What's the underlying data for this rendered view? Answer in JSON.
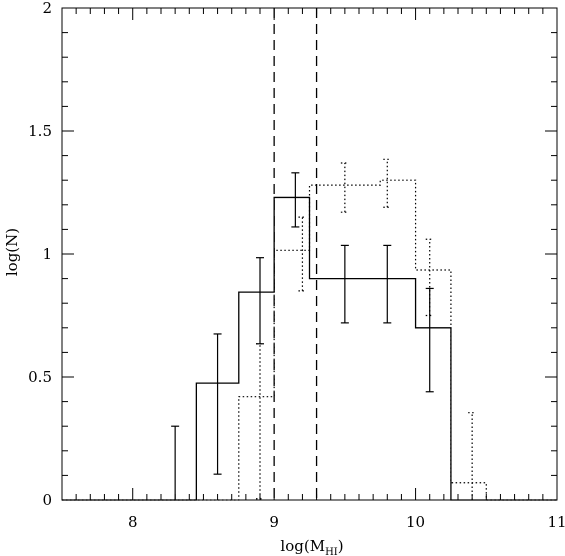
{
  "chart_data": {
    "type": "histogram",
    "xlabel": "log(M",
    "xlabel_sub": "HI",
    "xlabel_close": ")",
    "ylabel": "log(N)",
    "xlim": [
      7.5,
      11
    ],
    "ylim": [
      0,
      2
    ],
    "x_ticks": [
      8,
      9,
      10,
      11
    ],
    "x_tick_labels": [
      "8",
      "9",
      "10",
      "11"
    ],
    "y_ticks": [
      0,
      0.5,
      1,
      1.5,
      2
    ],
    "y_tick_labels": [
      "0",
      "0.5",
      "1",
      "1.5",
      "2"
    ],
    "grid": false,
    "vertical_lines": [
      9.0,
      9.3
    ],
    "series": [
      {
        "style": "solid",
        "bin_edges": [
          7.5,
          7.7,
          7.95,
          8.15,
          8.45,
          8.75,
          9.0,
          9.25,
          9.5,
          9.75,
          10.0,
          10.25,
          10.5,
          10.75,
          11.0
        ],
        "values": [
          0,
          0,
          0,
          0,
          0.475,
          0.845,
          1.23,
          0.9,
          0.9,
          0.9,
          0.7,
          0,
          0,
          0
        ],
        "error_bars": [
          {
            "x": 8.3,
            "y": 0,
            "low": 0,
            "high": 0.3
          },
          {
            "x": 8.6,
            "y": 0.475,
            "low": 0.105,
            "high": 0.675
          },
          {
            "x": 8.9,
            "y": 0.845,
            "low": 0.635,
            "high": 0.985
          },
          {
            "x": 9.15,
            "y": 1.23,
            "low": 1.11,
            "high": 1.33
          },
          {
            "x": 9.5,
            "y": 0.9,
            "low": 0.72,
            "high": 1.035
          },
          {
            "x": 9.8,
            "y": 0.9,
            "low": 0.72,
            "high": 1.035
          },
          {
            "x": 10.1,
            "y": 0.7,
            "low": 0.44,
            "high": 0.86
          }
        ]
      },
      {
        "style": "dotted",
        "bin_edges": [
          7.5,
          8.75,
          9.0,
          9.25,
          9.5,
          9.75,
          10.0,
          10.25,
          10.5,
          10.75,
          11.0
        ],
        "values": [
          0,
          0.42,
          1.015,
          1.28,
          1.28,
          1.3,
          0.935,
          0.07,
          0,
          0
        ],
        "error_bars": [
          {
            "x": 8.9,
            "y": 0.42,
            "low": 0.005,
            "high": 0.635
          },
          {
            "x": 9.2,
            "y": 1.015,
            "low": 0.85,
            "high": 1.15
          },
          {
            "x": 9.5,
            "y": 1.28,
            "low": 1.17,
            "high": 1.37
          },
          {
            "x": 9.8,
            "y": 1.3,
            "low": 1.19,
            "high": 1.385
          },
          {
            "x": 10.1,
            "y": 0.935,
            "low": 0.75,
            "high": 1.06
          },
          {
            "x": 10.4,
            "y": 0.07,
            "low": 0,
            "high": 0.355
          }
        ]
      }
    ]
  }
}
